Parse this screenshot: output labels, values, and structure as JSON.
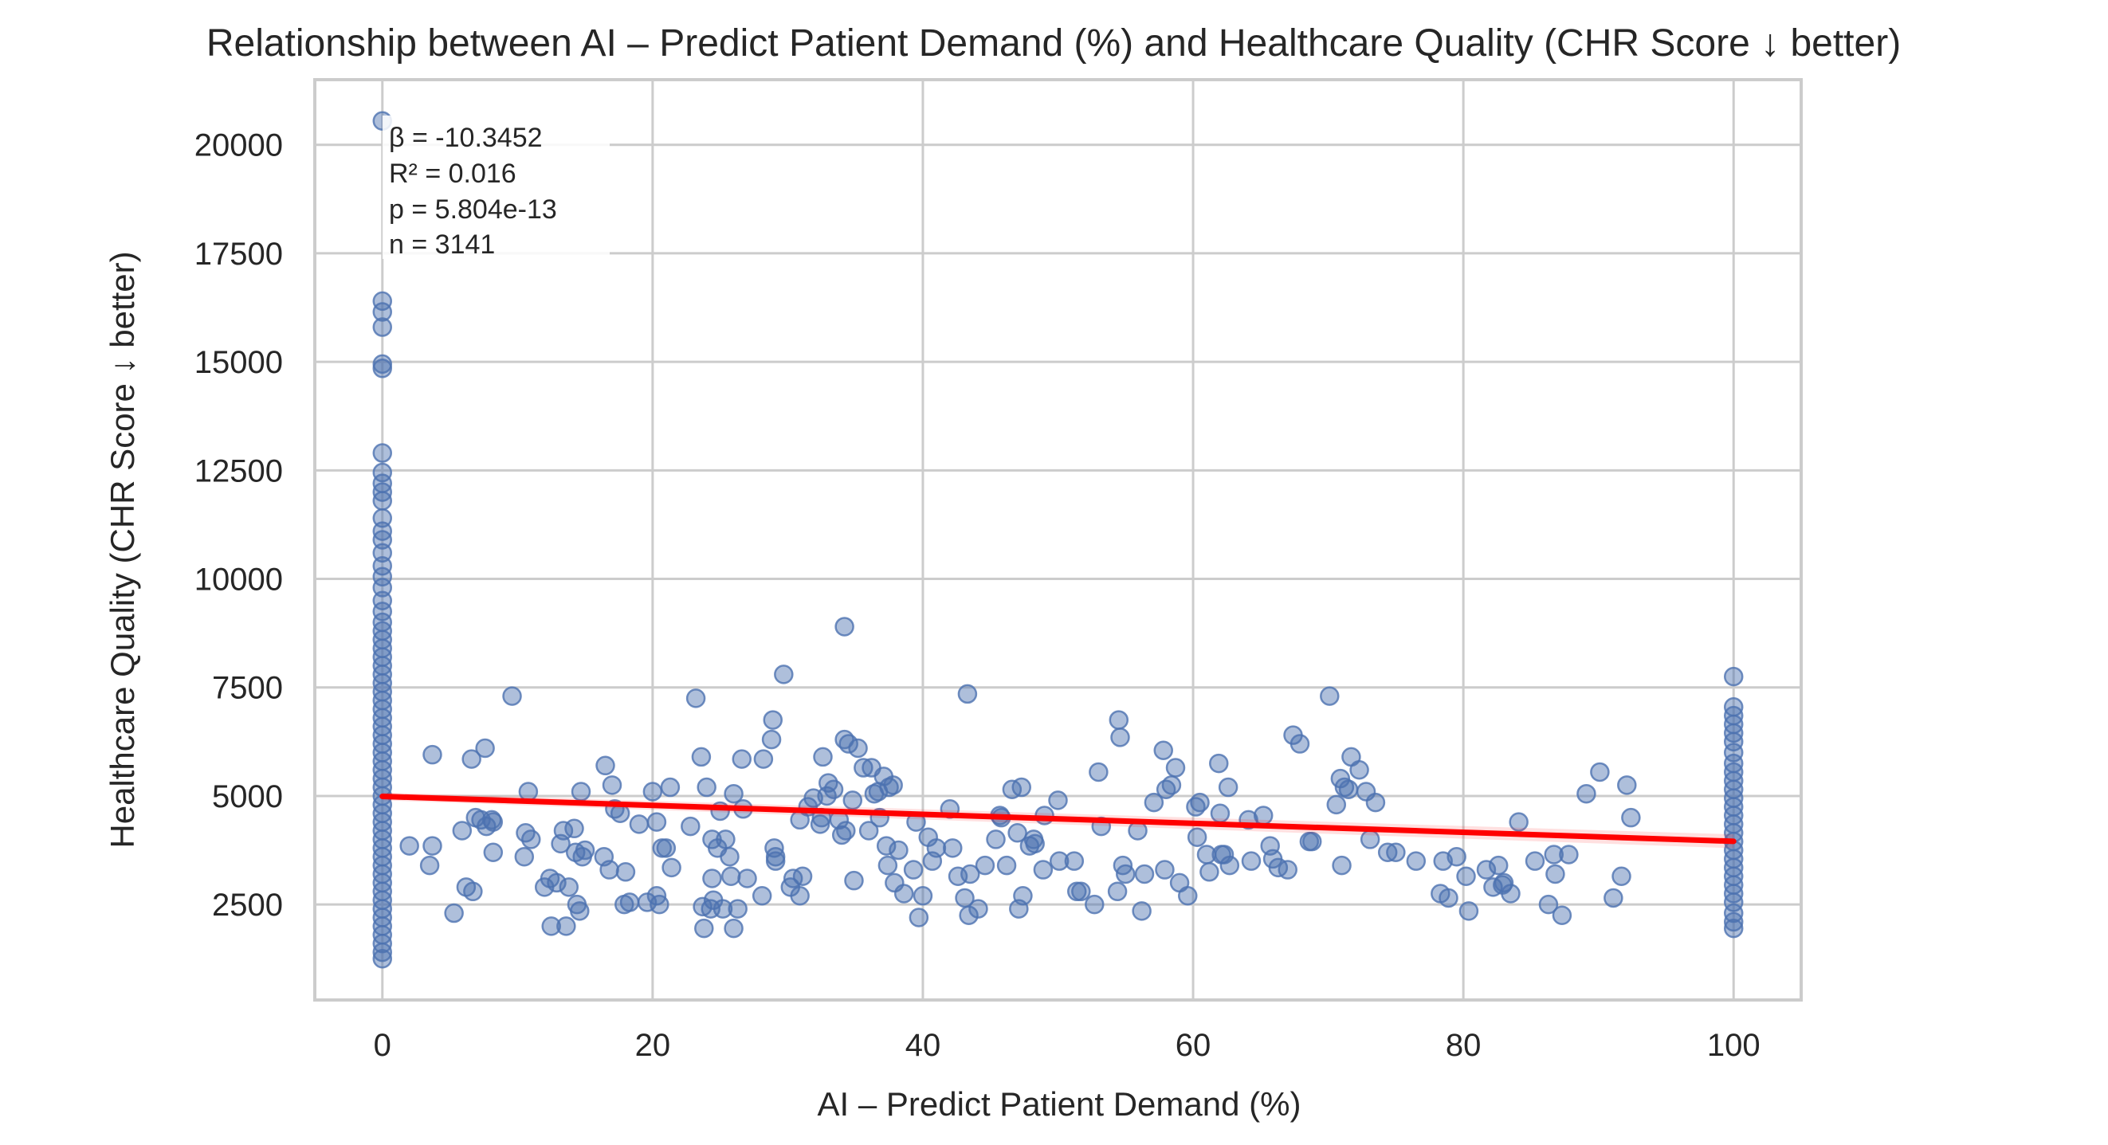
{
  "chart_data": {
    "type": "scatter",
    "title": "Relationship between AI – Predict Patient Demand (%) and Healthcare Quality (CHR Score ↓ better)",
    "xlabel": "AI – Predict Patient Demand (%)",
    "ylabel": "Healthcare Quality (CHR Score ↓ better)",
    "xlim": [
      -5,
      105
    ],
    "ylim": [
      300,
      21500
    ],
    "xticks": [
      0,
      20,
      40,
      60,
      80,
      100
    ],
    "yticks": [
      2500,
      5000,
      7500,
      10000,
      12500,
      15000,
      17500,
      20000
    ],
    "grid": true,
    "point_color": "#4c72b0",
    "line_color": "#ff0000",
    "regression": {
      "intercept": 4990,
      "slope": -10.3452,
      "x_range": [
        0,
        100
      ]
    },
    "annotation_lines": [
      "β = -10.3452",
      "R² = 0.016",
      "p = 5.804e-13",
      "n = 3141"
    ],
    "points": [
      {
        "x": 0,
        "y": 20550
      },
      {
        "x": 0,
        "y": 16400
      },
      {
        "x": 0,
        "y": 16150
      },
      {
        "x": 0,
        "y": 15800
      },
      {
        "x": 0,
        "y": 14950
      },
      {
        "x": 0,
        "y": 14850
      },
      {
        "x": 0,
        "y": 12900
      },
      {
        "x": 0,
        "y": 12450
      },
      {
        "x": 0,
        "y": 12200
      },
      {
        "x": 0,
        "y": 12000
      },
      {
        "x": 0,
        "y": 11800
      },
      {
        "x": 0,
        "y": 11400
      },
      {
        "x": 0,
        "y": 11100
      },
      {
        "x": 0,
        "y": 10900
      },
      {
        "x": 0,
        "y": 10600
      },
      {
        "x": 0,
        "y": 10300
      },
      {
        "x": 0,
        "y": 10050
      },
      {
        "x": 0,
        "y": 9800
      },
      {
        "x": 0,
        "y": 9500
      },
      {
        "x": 0,
        "y": 9250
      },
      {
        "x": 0,
        "y": 9000
      },
      {
        "x": 0,
        "y": 8800
      },
      {
        "x": 0,
        "y": 8600
      },
      {
        "x": 0,
        "y": 8400
      },
      {
        "x": 0,
        "y": 8200
      },
      {
        "x": 0,
        "y": 8000
      },
      {
        "x": 0,
        "y": 7800
      },
      {
        "x": 0,
        "y": 7600
      },
      {
        "x": 0,
        "y": 7400
      },
      {
        "x": 0,
        "y": 7200
      },
      {
        "x": 0,
        "y": 7000
      },
      {
        "x": 0,
        "y": 6800
      },
      {
        "x": 0,
        "y": 6600
      },
      {
        "x": 0,
        "y": 6400
      },
      {
        "x": 0,
        "y": 6200
      },
      {
        "x": 0,
        "y": 6000
      },
      {
        "x": 0,
        "y": 5800
      },
      {
        "x": 0,
        "y": 5600
      },
      {
        "x": 0,
        "y": 5400
      },
      {
        "x": 0,
        "y": 5200
      },
      {
        "x": 0,
        "y": 5000
      },
      {
        "x": 0,
        "y": 4800
      },
      {
        "x": 0,
        "y": 4600
      },
      {
        "x": 0,
        "y": 4400
      },
      {
        "x": 0,
        "y": 4200
      },
      {
        "x": 0,
        "y": 4000
      },
      {
        "x": 0,
        "y": 3800
      },
      {
        "x": 0,
        "y": 3600
      },
      {
        "x": 0,
        "y": 3400
      },
      {
        "x": 0,
        "y": 3200
      },
      {
        "x": 0,
        "y": 3000
      },
      {
        "x": 0,
        "y": 2800
      },
      {
        "x": 0,
        "y": 2600
      },
      {
        "x": 0,
        "y": 2400
      },
      {
        "x": 0,
        "y": 2200
      },
      {
        "x": 0,
        "y": 2000
      },
      {
        "x": 0,
        "y": 1800
      },
      {
        "x": 0,
        "y": 1600
      },
      {
        "x": 0,
        "y": 1400
      },
      {
        "x": 0,
        "y": 1250
      },
      {
        "x": 100,
        "y": 7750
      },
      {
        "x": 100,
        "y": 7050
      },
      {
        "x": 100,
        "y": 6850
      },
      {
        "x": 100,
        "y": 6650
      },
      {
        "x": 100,
        "y": 6450
      },
      {
        "x": 100,
        "y": 6250
      },
      {
        "x": 100,
        "y": 6000
      },
      {
        "x": 100,
        "y": 5750
      },
      {
        "x": 100,
        "y": 5550
      },
      {
        "x": 100,
        "y": 5350
      },
      {
        "x": 100,
        "y": 5150
      },
      {
        "x": 100,
        "y": 4950
      },
      {
        "x": 100,
        "y": 4750
      },
      {
        "x": 100,
        "y": 4550
      },
      {
        "x": 100,
        "y": 4350
      },
      {
        "x": 100,
        "y": 4150
      },
      {
        "x": 100,
        "y": 3950
      },
      {
        "x": 100,
        "y": 3750
      },
      {
        "x": 100,
        "y": 3550
      },
      {
        "x": 100,
        "y": 3350
      },
      {
        "x": 100,
        "y": 3150
      },
      {
        "x": 100,
        "y": 2950
      },
      {
        "x": 100,
        "y": 2750
      },
      {
        "x": 100,
        "y": 2550
      },
      {
        "x": 100,
        "y": 2300
      },
      {
        "x": 100,
        "y": 2100
      },
      {
        "x": 100,
        "y": 1950
      },
      {
        "x": 2,
        "y": 3850
      },
      {
        "x": 3.5,
        "y": 3400
      },
      {
        "x": 3.7,
        "y": 3850
      },
      {
        "x": 3.7,
        "y": 5950
      },
      {
        "x": 5.3,
        "y": 2300
      },
      {
        "x": 5.9,
        "y": 4200
      },
      {
        "x": 6.2,
        "y": 2900
      },
      {
        "x": 6.6,
        "y": 5850
      },
      {
        "x": 6.7,
        "y": 2800
      },
      {
        "x": 6.9,
        "y": 4500
      },
      {
        "x": 7.3,
        "y": 4450
      },
      {
        "x": 7.6,
        "y": 6100
      },
      {
        "x": 7.7,
        "y": 4300
      },
      {
        "x": 8.1,
        "y": 4450
      },
      {
        "x": 8.2,
        "y": 4400
      },
      {
        "x": 8.2,
        "y": 3700
      },
      {
        "x": 9.6,
        "y": 7300
      },
      {
        "x": 10.5,
        "y": 3600
      },
      {
        "x": 10.6,
        "y": 4150
      },
      {
        "x": 10.8,
        "y": 5100
      },
      {
        "x": 11,
        "y": 4000
      },
      {
        "x": 12,
        "y": 2900
      },
      {
        "x": 12.4,
        "y": 3100
      },
      {
        "x": 12.5,
        "y": 2000
      },
      {
        "x": 12.9,
        "y": 3000
      },
      {
        "x": 13.2,
        "y": 3900
      },
      {
        "x": 13.4,
        "y": 4200
      },
      {
        "x": 13.6,
        "y": 2000
      },
      {
        "x": 13.8,
        "y": 2900
      },
      {
        "x": 14.2,
        "y": 4250
      },
      {
        "x": 14.3,
        "y": 3700
      },
      {
        "x": 14.4,
        "y": 2500
      },
      {
        "x": 14.6,
        "y": 2350
      },
      {
        "x": 14.7,
        "y": 5100
      },
      {
        "x": 14.8,
        "y": 3600
      },
      {
        "x": 15,
        "y": 3750
      },
      {
        "x": 16.4,
        "y": 3600
      },
      {
        "x": 16.5,
        "y": 5700
      },
      {
        "x": 16.8,
        "y": 3300
      },
      {
        "x": 17,
        "y": 5250
      },
      {
        "x": 17.2,
        "y": 4700
      },
      {
        "x": 17.6,
        "y": 4600
      },
      {
        "x": 17.9,
        "y": 2500
      },
      {
        "x": 18,
        "y": 3250
      },
      {
        "x": 18.3,
        "y": 2550
      },
      {
        "x": 19,
        "y": 4350
      },
      {
        "x": 19.6,
        "y": 2550
      },
      {
        "x": 20,
        "y": 5100
      },
      {
        "x": 20.3,
        "y": 4400
      },
      {
        "x": 20.3,
        "y": 2700
      },
      {
        "x": 20.5,
        "y": 2500
      },
      {
        "x": 20.7,
        "y": 3800
      },
      {
        "x": 21,
        "y": 3800
      },
      {
        "x": 21.3,
        "y": 5200
      },
      {
        "x": 21.4,
        "y": 3350
      },
      {
        "x": 22.8,
        "y": 4300
      },
      {
        "x": 23.2,
        "y": 7250
      },
      {
        "x": 23.6,
        "y": 5900
      },
      {
        "x": 23.7,
        "y": 2450
      },
      {
        "x": 23.8,
        "y": 1950
      },
      {
        "x": 24,
        "y": 5200
      },
      {
        "x": 24.3,
        "y": 2400
      },
      {
        "x": 24.4,
        "y": 3100
      },
      {
        "x": 24.4,
        "y": 4000
      },
      {
        "x": 24.5,
        "y": 2600
      },
      {
        "x": 24.8,
        "y": 3800
      },
      {
        "x": 25,
        "y": 4650
      },
      {
        "x": 25.2,
        "y": 2400
      },
      {
        "x": 25.4,
        "y": 4000
      },
      {
        "x": 25.7,
        "y": 3600
      },
      {
        "x": 25.8,
        "y": 3150
      },
      {
        "x": 26,
        "y": 5050
      },
      {
        "x": 26,
        "y": 1950
      },
      {
        "x": 26.3,
        "y": 2400
      },
      {
        "x": 26.6,
        "y": 5850
      },
      {
        "x": 26.7,
        "y": 4700
      },
      {
        "x": 27,
        "y": 3100
      },
      {
        "x": 28.1,
        "y": 2700
      },
      {
        "x": 28.2,
        "y": 5850
      },
      {
        "x": 28.8,
        "y": 6300
      },
      {
        "x": 28.9,
        "y": 6750
      },
      {
        "x": 29,
        "y": 3800
      },
      {
        "x": 29.1,
        "y": 3600
      },
      {
        "x": 29.1,
        "y": 3500
      },
      {
        "x": 29.7,
        "y": 7800
      },
      {
        "x": 30.2,
        "y": 2900
      },
      {
        "x": 30.4,
        "y": 3100
      },
      {
        "x": 30.9,
        "y": 2700
      },
      {
        "x": 30.9,
        "y": 4450
      },
      {
        "x": 31.1,
        "y": 3150
      },
      {
        "x": 31.5,
        "y": 4750
      },
      {
        "x": 31.9,
        "y": 4950
      },
      {
        "x": 32.4,
        "y": 4350
      },
      {
        "x": 32.5,
        "y": 4500
      },
      {
        "x": 32.6,
        "y": 5900
      },
      {
        "x": 32.9,
        "y": 5000
      },
      {
        "x": 33,
        "y": 5300
      },
      {
        "x": 33.4,
        "y": 5150
      },
      {
        "x": 33.8,
        "y": 4450
      },
      {
        "x": 34,
        "y": 4100
      },
      {
        "x": 34.2,
        "y": 6300
      },
      {
        "x": 34.2,
        "y": 8900
      },
      {
        "x": 34.3,
        "y": 4200
      },
      {
        "x": 34.5,
        "y": 6200
      },
      {
        "x": 34.8,
        "y": 4900
      },
      {
        "x": 34.9,
        "y": 3050
      },
      {
        "x": 35.2,
        "y": 6100
      },
      {
        "x": 35.6,
        "y": 5650
      },
      {
        "x": 36,
        "y": 4200
      },
      {
        "x": 36.2,
        "y": 5650
      },
      {
        "x": 36.4,
        "y": 5050
      },
      {
        "x": 36.7,
        "y": 5100
      },
      {
        "x": 36.8,
        "y": 4500
      },
      {
        "x": 37.1,
        "y": 5450
      },
      {
        "x": 37.3,
        "y": 3850
      },
      {
        "x": 37.4,
        "y": 3400
      },
      {
        "x": 37.5,
        "y": 5200
      },
      {
        "x": 37.8,
        "y": 5250
      },
      {
        "x": 37.9,
        "y": 3000
      },
      {
        "x": 38.2,
        "y": 3750
      },
      {
        "x": 38.6,
        "y": 2750
      },
      {
        "x": 39.3,
        "y": 3300
      },
      {
        "x": 39.5,
        "y": 4400
      },
      {
        "x": 39.7,
        "y": 2200
      },
      {
        "x": 40,
        "y": 2700
      },
      {
        "x": 40.4,
        "y": 4050
      },
      {
        "x": 40.7,
        "y": 3500
      },
      {
        "x": 41,
        "y": 3800
      },
      {
        "x": 42,
        "y": 4700
      },
      {
        "x": 42.2,
        "y": 3800
      },
      {
        "x": 42.6,
        "y": 3150
      },
      {
        "x": 43.1,
        "y": 2650
      },
      {
        "x": 43.3,
        "y": 7350
      },
      {
        "x": 43.4,
        "y": 2250
      },
      {
        "x": 43.5,
        "y": 3200
      },
      {
        "x": 44.1,
        "y": 2400
      },
      {
        "x": 44.6,
        "y": 3400
      },
      {
        "x": 45.4,
        "y": 4000
      },
      {
        "x": 45.7,
        "y": 4550
      },
      {
        "x": 45.8,
        "y": 4500
      },
      {
        "x": 46.2,
        "y": 3400
      },
      {
        "x": 46.6,
        "y": 5150
      },
      {
        "x": 47,
        "y": 4150
      },
      {
        "x": 47.1,
        "y": 2400
      },
      {
        "x": 47.3,
        "y": 5200
      },
      {
        "x": 47.4,
        "y": 2700
      },
      {
        "x": 47.9,
        "y": 3850
      },
      {
        "x": 48.2,
        "y": 4000
      },
      {
        "x": 48.3,
        "y": 3900
      },
      {
        "x": 48.9,
        "y": 3300
      },
      {
        "x": 49,
        "y": 4550
      },
      {
        "x": 50,
        "y": 4900
      },
      {
        "x": 50.1,
        "y": 3500
      },
      {
        "x": 51.2,
        "y": 3500
      },
      {
        "x": 51.4,
        "y": 2800
      },
      {
        "x": 51.7,
        "y": 2800
      },
      {
        "x": 52.7,
        "y": 2500
      },
      {
        "x": 53,
        "y": 5550
      },
      {
        "x": 53.2,
        "y": 4300
      },
      {
        "x": 54.4,
        "y": 2800
      },
      {
        "x": 54.5,
        "y": 6750
      },
      {
        "x": 54.6,
        "y": 6350
      },
      {
        "x": 54.8,
        "y": 3400
      },
      {
        "x": 55,
        "y": 3200
      },
      {
        "x": 55.9,
        "y": 4200
      },
      {
        "x": 56.2,
        "y": 2350
      },
      {
        "x": 56.4,
        "y": 3200
      },
      {
        "x": 57.1,
        "y": 4850
      },
      {
        "x": 57.8,
        "y": 6050
      },
      {
        "x": 57.9,
        "y": 3300
      },
      {
        "x": 58,
        "y": 5150
      },
      {
        "x": 58.4,
        "y": 5250
      },
      {
        "x": 58.7,
        "y": 5650
      },
      {
        "x": 59,
        "y": 3000
      },
      {
        "x": 59.6,
        "y": 2700
      },
      {
        "x": 60.2,
        "y": 4750
      },
      {
        "x": 60.3,
        "y": 4050
      },
      {
        "x": 60.5,
        "y": 4850
      },
      {
        "x": 61,
        "y": 3650
      },
      {
        "x": 61.2,
        "y": 3250
      },
      {
        "x": 61.9,
        "y": 5750
      },
      {
        "x": 62,
        "y": 4600
      },
      {
        "x": 62.1,
        "y": 3650
      },
      {
        "x": 62.3,
        "y": 3650
      },
      {
        "x": 62.6,
        "y": 5200
      },
      {
        "x": 62.7,
        "y": 3400
      },
      {
        "x": 64.1,
        "y": 4450
      },
      {
        "x": 64.3,
        "y": 3500
      },
      {
        "x": 65.2,
        "y": 4550
      },
      {
        "x": 65.7,
        "y": 3850
      },
      {
        "x": 65.9,
        "y": 3550
      },
      {
        "x": 66.3,
        "y": 3350
      },
      {
        "x": 67,
        "y": 3300
      },
      {
        "x": 67.4,
        "y": 6400
      },
      {
        "x": 67.9,
        "y": 6200
      },
      {
        "x": 68.6,
        "y": 3950
      },
      {
        "x": 68.8,
        "y": 3950
      },
      {
        "x": 70.1,
        "y": 7300
      },
      {
        "x": 70.6,
        "y": 4800
      },
      {
        "x": 70.9,
        "y": 5400
      },
      {
        "x": 71,
        "y": 3400
      },
      {
        "x": 71.2,
        "y": 5200
      },
      {
        "x": 71.5,
        "y": 5150
      },
      {
        "x": 71.7,
        "y": 5900
      },
      {
        "x": 72.3,
        "y": 5600
      },
      {
        "x": 72.8,
        "y": 5100
      },
      {
        "x": 73.1,
        "y": 4000
      },
      {
        "x": 73.5,
        "y": 4850
      },
      {
        "x": 74.4,
        "y": 3700
      },
      {
        "x": 75,
        "y": 3700
      },
      {
        "x": 76.5,
        "y": 3500
      },
      {
        "x": 78.3,
        "y": 2750
      },
      {
        "x": 78.5,
        "y": 3500
      },
      {
        "x": 78.9,
        "y": 2650
      },
      {
        "x": 79.5,
        "y": 3600
      },
      {
        "x": 80.2,
        "y": 3150
      },
      {
        "x": 80.4,
        "y": 2350
      },
      {
        "x": 81.7,
        "y": 3300
      },
      {
        "x": 82.2,
        "y": 2900
      },
      {
        "x": 82.6,
        "y": 3400
      },
      {
        "x": 82.9,
        "y": 2950
      },
      {
        "x": 83,
        "y": 3000
      },
      {
        "x": 83.5,
        "y": 2750
      },
      {
        "x": 84.1,
        "y": 4400
      },
      {
        "x": 85.3,
        "y": 3500
      },
      {
        "x": 86.3,
        "y": 2500
      },
      {
        "x": 86.7,
        "y": 3650
      },
      {
        "x": 86.8,
        "y": 3200
      },
      {
        "x": 87.3,
        "y": 2250
      },
      {
        "x": 87.8,
        "y": 3650
      },
      {
        "x": 89.1,
        "y": 5050
      },
      {
        "x": 90.1,
        "y": 5550
      },
      {
        "x": 91.1,
        "y": 2650
      },
      {
        "x": 91.7,
        "y": 3150
      },
      {
        "x": 92.1,
        "y": 5250
      },
      {
        "x": 92.4,
        "y": 4500
      }
    ]
  }
}
